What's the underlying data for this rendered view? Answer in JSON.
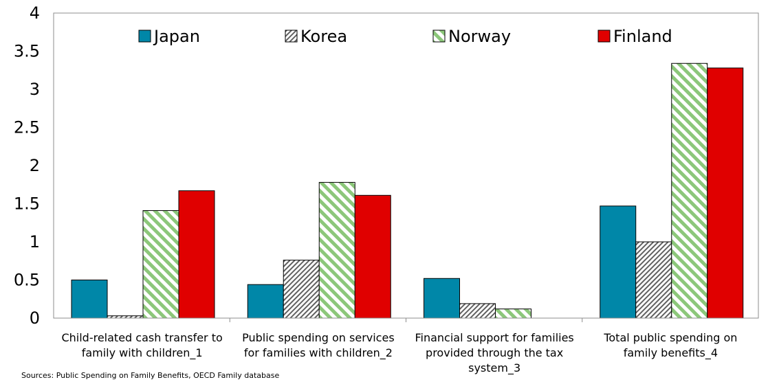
{
  "chart_data": {
    "type": "bar",
    "categories": [
      "Child-related cash transfer to family with children_1",
      "Public spending on services for families with children_2",
      "Financial support for families provided through the tax system_3",
      "Total public spending on family benefits_4"
    ],
    "category_lines": [
      [
        "Child-related cash transfer to",
        "family with children_1"
      ],
      [
        "Public spending on services",
        "for families with children_2"
      ],
      [
        "Financial support for families",
        "provided through the tax",
        "system_3"
      ],
      [
        "Total public spending on",
        "family benefits_4"
      ]
    ],
    "series": [
      {
        "name": "Japan",
        "values": [
          0.5,
          0.44,
          0.52,
          1.47
        ],
        "color": "#0087a8",
        "pattern": "solid"
      },
      {
        "name": "Korea",
        "values": [
          0.03,
          0.76,
          0.19,
          1.0
        ],
        "color": "#606060",
        "pattern": "diagonal-hatch"
      },
      {
        "name": "Norway",
        "values": [
          1.41,
          1.78,
          0.12,
          3.34
        ],
        "color": "#8cc77a",
        "pattern": "diagonal-stripes"
      },
      {
        "name": "Finland",
        "values": [
          1.67,
          1.61,
          0,
          3.28
        ],
        "color": "#e00000",
        "pattern": "solid"
      }
    ],
    "yticks": [
      "0",
      "0.5",
      "1",
      "1.5",
      "2",
      "2.5",
      "3",
      "3.5",
      "4"
    ],
    "ylim": [
      0,
      4
    ],
    "legend_position": "top",
    "grid": false,
    "title": "",
    "xlabel": "",
    "ylabel": ""
  },
  "source_text": "Sources: Public Spending on Family Benefits, OECD Family database"
}
